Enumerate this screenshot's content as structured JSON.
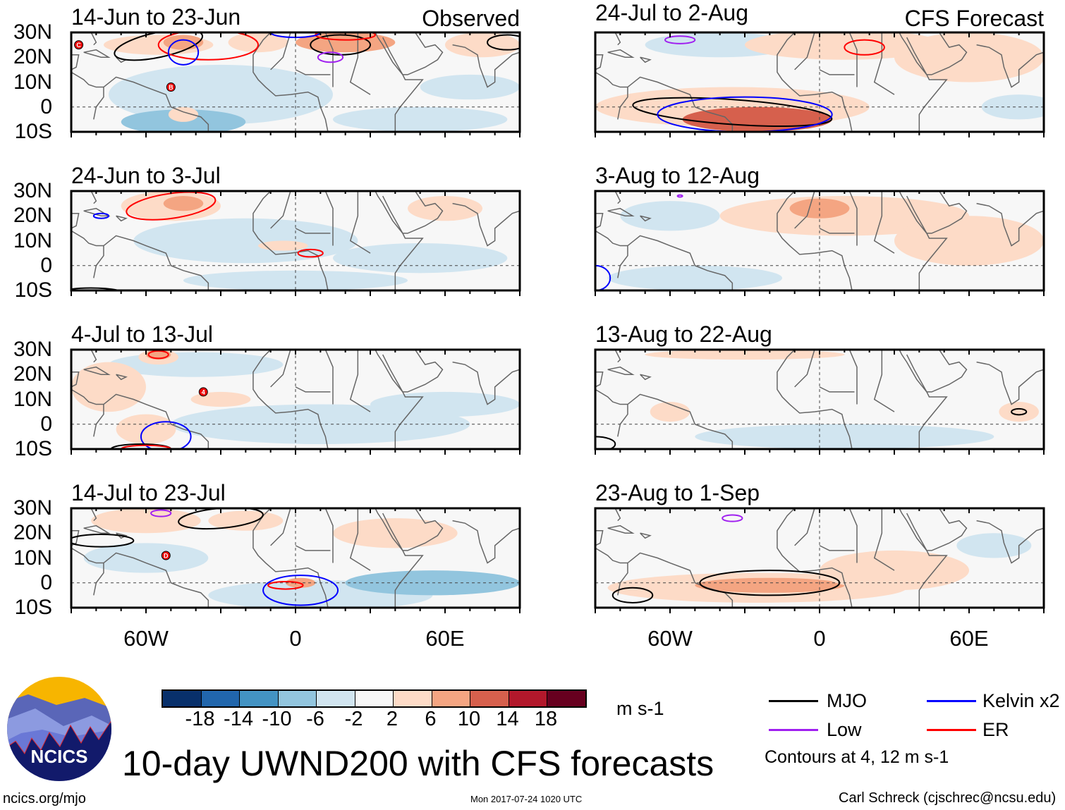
{
  "panels": [
    {
      "title": "14-Jun to 23-Jun",
      "label": "Observed",
      "shading": [
        {
          "lon": -30,
          "lat": 5,
          "rx": 45,
          "ry": 12,
          "v": -3
        },
        {
          "lon": -45,
          "lat": -6,
          "rx": 25,
          "ry": 5,
          "v": -10
        },
        {
          "lon": 70,
          "lat": 8,
          "rx": 20,
          "ry": 5,
          "v": -6
        },
        {
          "lon": 50,
          "lat": -5,
          "rx": 35,
          "ry": 5,
          "v": -3
        },
        {
          "lon": -55,
          "lat": 25,
          "rx": 22,
          "ry": 4,
          "v": 4
        },
        {
          "lon": -45,
          "lat": 26,
          "rx": 8,
          "ry": 3,
          "v": 8
        },
        {
          "lon": -15,
          "lat": 26,
          "rx": 12,
          "ry": 4,
          "v": 4
        },
        {
          "lon": 20,
          "lat": 26,
          "rx": 20,
          "ry": 4,
          "v": 6
        },
        {
          "lon": 75,
          "lat": 25,
          "rx": 15,
          "ry": 5,
          "v": 4
        },
        {
          "lon": -45,
          "lat": -3,
          "rx": 6,
          "ry": 3,
          "v": 3
        }
      ],
      "contours": [
        {
          "type": "MJO",
          "lon": -55,
          "lat": 25,
          "rx": 18,
          "ry": 5,
          "rot": -12
        },
        {
          "type": "MJO",
          "lon": 18,
          "lat": 25,
          "rx": 12,
          "ry": 4,
          "rot": 0
        },
        {
          "type": "MJO",
          "lon": 85,
          "lat": 26,
          "rx": 8,
          "ry": 3,
          "rot": 0
        },
        {
          "type": "ER",
          "lon": -35,
          "lat": 25,
          "rx": 20,
          "ry": 6,
          "rot": 0
        },
        {
          "type": "ER",
          "lon": 20,
          "lat": 29,
          "rx": 12,
          "ry": 2,
          "rot": 0
        },
        {
          "type": "Kelvin",
          "lon": -45,
          "lat": 22,
          "rx": 6,
          "ry": 5,
          "rot": 0
        },
        {
          "type": "Kelvin",
          "lon": 0,
          "lat": 30,
          "rx": 10,
          "ry": 2,
          "rot": 0
        },
        {
          "type": "Low",
          "lon": 14,
          "lat": 20,
          "rx": 5,
          "ry": 2,
          "rot": 0
        }
      ],
      "storms": [
        {
          "lon": -87,
          "lat": 25,
          "label": "C"
        },
        {
          "lon": -50,
          "lat": 8,
          "label": "B"
        }
      ]
    },
    {
      "title": "24-Jun to 3-Jul",
      "label": "",
      "shading": [
        {
          "lon": -20,
          "lat": 10,
          "rx": 45,
          "ry": 9,
          "v": -3
        },
        {
          "lon": 50,
          "lat": 3,
          "rx": 35,
          "ry": 6,
          "v": -4
        },
        {
          "lon": 0,
          "lat": -6,
          "rx": 45,
          "ry": 4,
          "v": -4
        },
        {
          "lon": -50,
          "lat": 24,
          "rx": 20,
          "ry": 6,
          "v": 4
        },
        {
          "lon": -45,
          "lat": 25,
          "rx": 8,
          "ry": 3,
          "v": 8
        },
        {
          "lon": 60,
          "lat": 23,
          "rx": 15,
          "ry": 5,
          "v": 3
        },
        {
          "lon": -5,
          "lat": 8,
          "rx": 10,
          "ry": 2,
          "v": 3
        }
      ],
      "contours": [
        {
          "type": "ER",
          "lon": -50,
          "lat": 24,
          "rx": 18,
          "ry": 5,
          "rot": -8
        },
        {
          "type": "ER",
          "lon": 6,
          "lat": 5,
          "rx": 5,
          "ry": 1.5,
          "rot": 0
        },
        {
          "type": "Kelvin",
          "lon": -78,
          "lat": 20,
          "rx": 3,
          "ry": 1,
          "rot": 0
        },
        {
          "type": "MJO",
          "lon": -82,
          "lat": -12,
          "rx": 15,
          "ry": 3,
          "rot": 0
        }
      ],
      "storms": []
    },
    {
      "title": "4-Jul to 13-Jul",
      "label": "",
      "shading": [
        {
          "lon": -40,
          "lat": 24,
          "rx": 35,
          "ry": 5,
          "v": -3
        },
        {
          "lon": 10,
          "lat": 0,
          "rx": 60,
          "ry": 8,
          "v": -3
        },
        {
          "lon": 60,
          "lat": 8,
          "rx": 30,
          "ry": 5,
          "v": -5
        },
        {
          "lon": -75,
          "lat": 15,
          "rx": 15,
          "ry": 10,
          "v": 4
        },
        {
          "lon": -60,
          "lat": -2,
          "rx": 12,
          "ry": 6,
          "v": 4
        },
        {
          "lon": -55,
          "lat": 27,
          "rx": 8,
          "ry": 3,
          "v": 4
        },
        {
          "lon": -55,
          "lat": 28,
          "rx": 5,
          "ry": 2,
          "v": 8
        },
        {
          "lon": -30,
          "lat": 10,
          "rx": 12,
          "ry": 3,
          "v": 3
        }
      ],
      "contours": [
        {
          "type": "ER",
          "lon": -55,
          "lat": 28,
          "rx": 4,
          "ry": 1.5,
          "rot": 0
        },
        {
          "type": "Kelvin",
          "lon": -52,
          "lat": -5,
          "rx": 10,
          "ry": 6,
          "rot": 0
        },
        {
          "type": "MJO",
          "lon": -62,
          "lat": -10,
          "rx": 12,
          "ry": 2,
          "rot": 0
        },
        {
          "type": "ER",
          "lon": -60,
          "lat": -10,
          "rx": 10,
          "ry": 1.5,
          "rot": 0
        }
      ],
      "storms": [
        {
          "lon": -37,
          "lat": 13,
          "label": "4"
        }
      ]
    },
    {
      "title": "14-Jul to 23-Jul",
      "label": "",
      "shading": [
        {
          "lon": 10,
          "lat": -5,
          "rx": 45,
          "ry": 6,
          "v": -3
        },
        {
          "lon": 55,
          "lat": 0,
          "rx": 35,
          "ry": 5,
          "v": -10
        },
        {
          "lon": -60,
          "lat": 10,
          "rx": 25,
          "ry": 6,
          "v": -3
        },
        {
          "lon": -60,
          "lat": 25,
          "rx": 22,
          "ry": 5,
          "v": 3
        },
        {
          "lon": -20,
          "lat": 25,
          "rx": 15,
          "ry": 4,
          "v": 3
        },
        {
          "lon": 40,
          "lat": 20,
          "rx": 25,
          "ry": 6,
          "v": 3
        },
        {
          "lon": 2,
          "lat": 0,
          "rx": 6,
          "ry": 2,
          "v": 8
        }
      ],
      "contours": [
        {
          "type": "MJO",
          "lon": -78,
          "lat": 17,
          "rx": 13,
          "ry": 2.5,
          "rot": 0
        },
        {
          "type": "MJO",
          "lon": -30,
          "lat": 26,
          "rx": 17,
          "ry": 4,
          "rot": -5
        },
        {
          "type": "Low",
          "lon": -54,
          "lat": 28,
          "rx": 4,
          "ry": 1.3,
          "rot": 0
        },
        {
          "type": "Kelvin",
          "lon": 2,
          "lat": -3,
          "rx": 15,
          "ry": 6,
          "rot": 0
        },
        {
          "type": "ER",
          "lon": -4,
          "lat": -1,
          "rx": 7,
          "ry": 1.5,
          "rot": 0
        }
      ],
      "storms": [
        {
          "lon": -52,
          "lat": 11,
          "label": "D"
        }
      ]
    },
    {
      "title": "24-Jul to 2-Aug",
      "label": "CFS Forecast",
      "shading": [
        {
          "lon": -40,
          "lat": 25,
          "rx": 30,
          "ry": 5,
          "v": -3
        },
        {
          "lon": 80,
          "lat": 0,
          "rx": 15,
          "ry": 5,
          "v": -5
        },
        {
          "lon": -35,
          "lat": 0,
          "rx": 55,
          "ry": 8,
          "v": 4
        },
        {
          "lon": -25,
          "lat": -5,
          "rx": 30,
          "ry": 5,
          "v": 10
        },
        {
          "lon": 10,
          "lat": 25,
          "rx": 40,
          "ry": 6,
          "v": 4
        },
        {
          "lon": 60,
          "lat": 20,
          "rx": 30,
          "ry": 10,
          "v": 3
        }
      ],
      "contours": [
        {
          "type": "MJO",
          "lon": -35,
          "lat": -2,
          "rx": 40,
          "ry": 5,
          "rot": 4
        },
        {
          "type": "Kelvin",
          "lon": -30,
          "lat": -3,
          "rx": 35,
          "ry": 7,
          "rot": 0
        },
        {
          "type": "ER",
          "lon": 18,
          "lat": 24,
          "rx": 8,
          "ry": 3,
          "rot": 0
        },
        {
          "type": "Low",
          "lon": -56,
          "lat": 27,
          "rx": 6,
          "ry": 1.5,
          "rot": 0
        }
      ],
      "storms": []
    },
    {
      "title": "3-Aug to 12-Aug",
      "label": "",
      "shading": [
        {
          "lon": -50,
          "lat": -5,
          "rx": 35,
          "ry": 5,
          "v": -3
        },
        {
          "lon": -60,
          "lat": 20,
          "rx": 20,
          "ry": 6,
          "v": -3
        },
        {
          "lon": 10,
          "lat": 20,
          "rx": 50,
          "ry": 8,
          "v": 4
        },
        {
          "lon": 0,
          "lat": 23,
          "rx": 12,
          "ry": 4,
          "v": 8
        },
        {
          "lon": 60,
          "lat": 10,
          "rx": 30,
          "ry": 10,
          "v": 3
        }
      ],
      "contours": [
        {
          "type": "Kelvin",
          "lon": -90,
          "lat": -5,
          "rx": 6,
          "ry": 5,
          "rot": 0
        },
        {
          "type": "Low",
          "lon": -56,
          "lat": 28,
          "rx": 1,
          "ry": 0.4,
          "rot": 0
        }
      ],
      "storms": []
    },
    {
      "title": "13-Aug to 22-Aug",
      "label": "",
      "shading": [
        {
          "lon": 10,
          "lat": -5,
          "rx": 60,
          "ry": 5,
          "v": -3
        },
        {
          "lon": -30,
          "lat": 28,
          "rx": 40,
          "ry": 2,
          "v": 3
        },
        {
          "lon": 80,
          "lat": 5,
          "rx": 8,
          "ry": 4,
          "v": 3
        },
        {
          "lon": -60,
          "lat": 5,
          "rx": 8,
          "ry": 4,
          "v": 3
        }
      ],
      "contours": [
        {
          "type": "MJO",
          "lon": 80,
          "lat": 5,
          "rx": 3,
          "ry": 1.2,
          "rot": 0
        },
        {
          "type": "MJO",
          "lon": -90,
          "lat": -8,
          "rx": 8,
          "ry": 3,
          "rot": 0
        }
      ],
      "storms": []
    },
    {
      "title": "23-Aug to 1-Sep",
      "label": "",
      "shading": [
        {
          "lon": 70,
          "lat": 15,
          "rx": 15,
          "ry": 5,
          "v": -3
        },
        {
          "lon": -25,
          "lat": -2,
          "rx": 60,
          "ry": 6,
          "v": 4
        },
        {
          "lon": -20,
          "lat": -1,
          "rx": 30,
          "ry": 3,
          "v": 8
        },
        {
          "lon": 30,
          "lat": 5,
          "rx": 30,
          "ry": 8,
          "v": 3
        }
      ],
      "contours": [
        {
          "type": "MJO",
          "lon": -20,
          "lat": 0,
          "rx": 28,
          "ry": 5,
          "rot": 0
        },
        {
          "type": "MJO",
          "lon": -75,
          "lat": -5,
          "rx": 8,
          "ry": 3,
          "rot": 0
        },
        {
          "type": "Low",
          "lon": -35,
          "lat": 26,
          "rx": 4,
          "ry": 1.3,
          "rot": 0
        }
      ],
      "storms": []
    }
  ],
  "lat_labels": [
    "30N",
    "20N",
    "10N",
    "0",
    "10S"
  ],
  "lon_labels": [
    "60W",
    "0",
    "60E"
  ],
  "colorbar": {
    "colors": [
      "#08306b",
      "#2166ac",
      "#4393c3",
      "#92c5de",
      "#d1e5f0",
      "#f7f7f7",
      "#fddbc7",
      "#f4a582",
      "#d6604d",
      "#b2182b",
      "#67001f"
    ],
    "labels": [
      "-18",
      "-14",
      "-10",
      "-6",
      "-2",
      "2",
      "6",
      "10",
      "14",
      "18"
    ],
    "units": "m s-1"
  },
  "legend": {
    "items": [
      {
        "label": "MJO",
        "color": "#000000"
      },
      {
        "label": "Kelvin x2",
        "color": "#0000ff"
      },
      {
        "label": "Low",
        "color": "#a020f0"
      },
      {
        "label": "ER",
        "color": "#ff0000"
      }
    ],
    "note": "Contours at 4, 12 m s-1"
  },
  "title": "10-day UWND200 with CFS forecasts",
  "logo_text": "NCICS",
  "footer": {
    "url": "ncics.org/mjo",
    "timestamp": "Mon 2017-07-24 1020 UTC",
    "author": "Carl Schreck (cjschrec@ncsu.edu)"
  }
}
